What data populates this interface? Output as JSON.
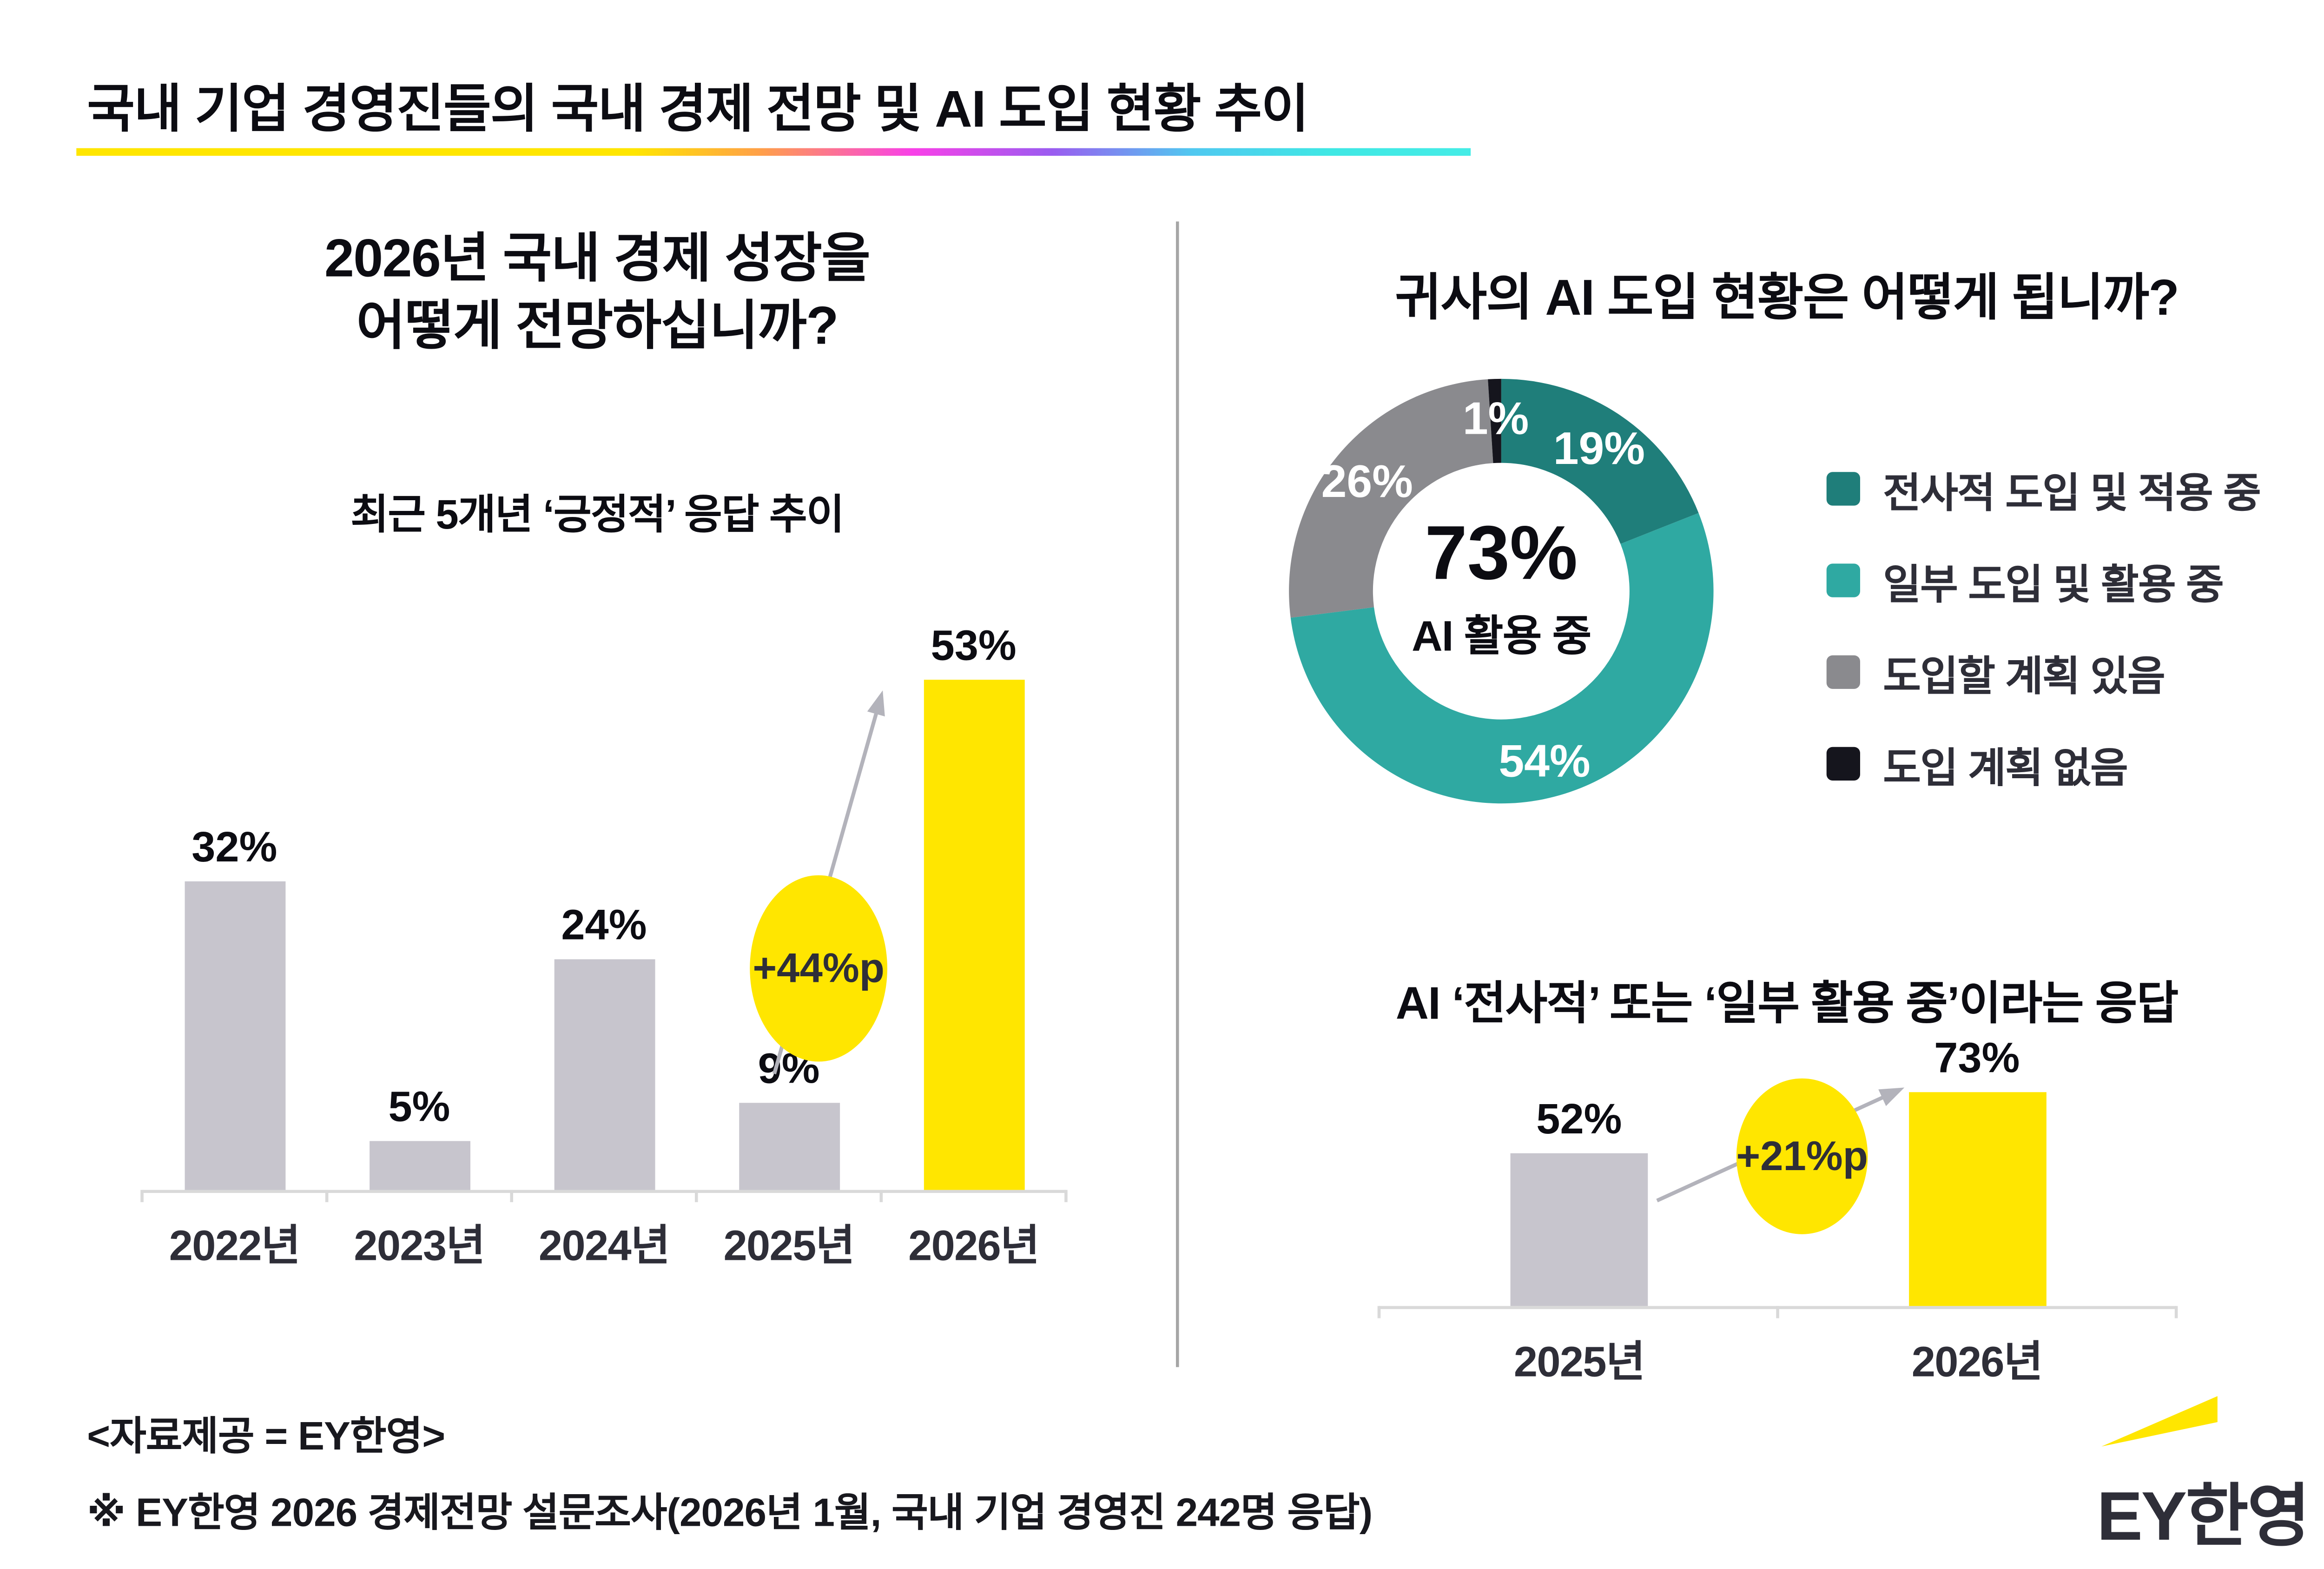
{
  "page": {
    "title": "국내 기업 경영진들의 국내 경제 전망 및 AI 도입 현황 추이"
  },
  "left_panel": {
    "title_line1": "2026년 국내 경제 성장을",
    "title_line2": "어떻게 전망하십니까?",
    "subtitle": "최근 5개년 ‘긍정적’ 응답 추이"
  },
  "chart_data": [
    {
      "id": "economy-outlook",
      "type": "bar",
      "title": "2026년 국내 경제 성장을 어떻게 전망하십니까?",
      "subtitle": "최근 5개년 ‘긍정적’ 응답 추이",
      "categories": [
        "2022년",
        "2023년",
        "2024년",
        "2025년",
        "2026년"
      ],
      "values": [
        32,
        5,
        24,
        9,
        53
      ],
      "unit": "%",
      "highlight_index": 4,
      "bar_colors": [
        "#c7c5cd",
        "#c7c5cd",
        "#c7c5cd",
        "#c7c5cd",
        "#ffe600"
      ],
      "annotation": {
        "label": "+44%p",
        "between": [
          "2025년",
          "2026년"
        ]
      },
      "ylim": [
        0,
        60
      ],
      "grid": false,
      "legend": "none"
    },
    {
      "id": "ai-adoption-donut",
      "type": "pie",
      "title": "귀사의 AI 도입 현황은 어떻게 됩니까?",
      "center_value": "73%",
      "center_label": "AI 활용 중",
      "segments": [
        {
          "label": "전사적 도입 및 적용 중",
          "value": 19,
          "color": "#1f7e7a"
        },
        {
          "label": "일부 도입 및 활용 중",
          "value": 54,
          "color": "#2fa9a2"
        },
        {
          "label": "도입할 계획 있음",
          "value": 26,
          "color": "#8a8a8e"
        },
        {
          "label": "도입 계획 없음",
          "value": 1,
          "color": "#15151d"
        }
      ],
      "legend_position": "right"
    },
    {
      "id": "ai-usage-trend",
      "type": "bar",
      "title": "AI ‘전사적’ 또는 ‘일부 활용 중’이라는 응답",
      "categories": [
        "2025년",
        "2026년"
      ],
      "values": [
        52,
        73
      ],
      "unit": "%",
      "highlight_index": 1,
      "bar_colors": [
        "#c7c5cd",
        "#ffe600"
      ],
      "annotation": {
        "label": "+21%p",
        "between": [
          "2025년",
          "2026년"
        ]
      },
      "ylim": [
        0,
        80
      ],
      "grid": false,
      "legend": "none"
    }
  ],
  "footer": {
    "source_line1": "<자료제공 = EY한영>",
    "source_line2": "※ EY한영 2026 경제전망 설문조사(2026년 1월, 국내 기업 경영진 242명 응답)",
    "logo_text": "EY한영"
  },
  "colors": {
    "accent_yellow": "#ffe600",
    "bar_gray": "#c7c5cd",
    "axis_gray": "#d9d9d9",
    "arrow_gray": "#b3b3bb",
    "divider_gray": "#a6a6a6",
    "text_dark": "#0c0c12",
    "text_navy": "#2e2e38",
    "teal_dark": "#1f7e7a",
    "teal_light": "#2fa9a2",
    "donut_gray": "#8a8a8e",
    "donut_black": "#15151d"
  }
}
